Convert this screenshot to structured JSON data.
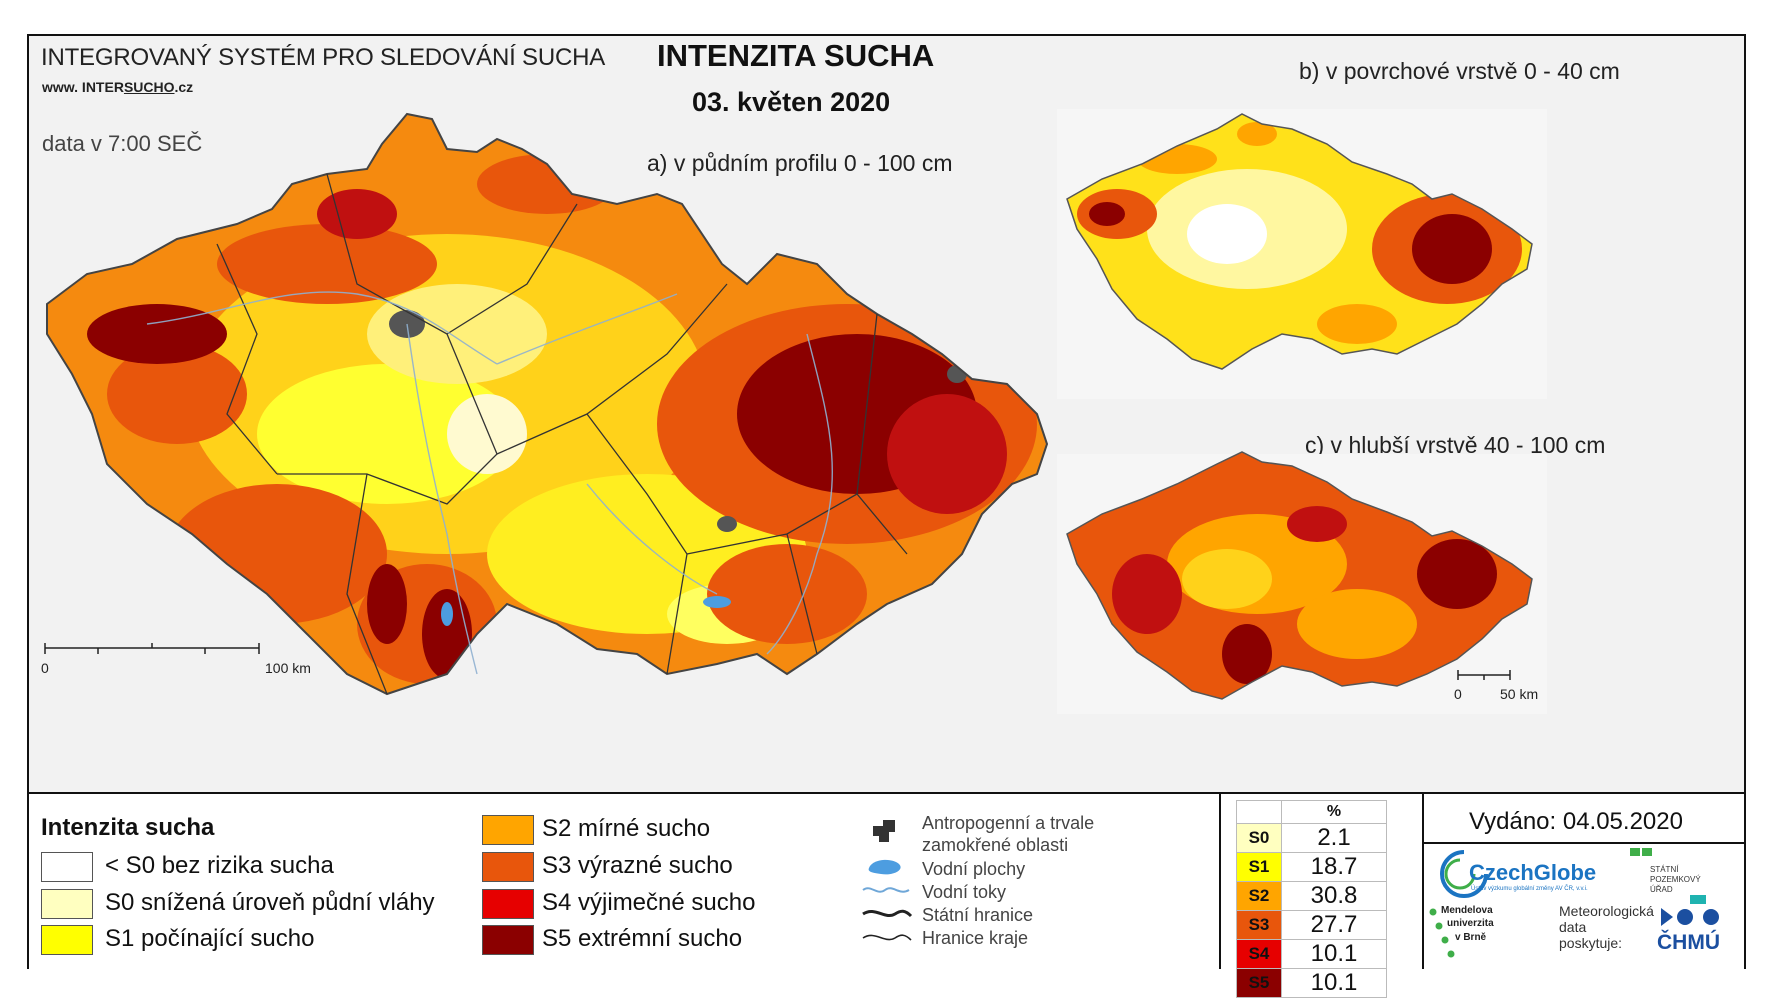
{
  "header": {
    "system_title": "INTEGROVANÝ SYSTÉM PRO SLEDOVÁNÍ SUCHA",
    "website_prefix": "www. INTER",
    "website_underlined": "SUCHO",
    "website_suffix": ".cz",
    "data_time": "data v 7:00 SEČ",
    "main_title": "INTENZITA SUCHA",
    "date": "03. květen 2020"
  },
  "maps": {
    "a_label": "a) v půdním profilu 0 - 100 cm",
    "b_label": "b) v povrchové vrstvě 0 - 40 cm",
    "c_label": "c) v hlubší vrstvě 40 - 100 cm",
    "scale_main_start": "0",
    "scale_main_end": "100 km",
    "scale_small_start": "0",
    "scale_small_end": "50 km"
  },
  "legend": {
    "title": "Intenzita sucha",
    "classes": [
      {
        "label": "< S0 bez rizika sucha",
        "color": "#ffffff"
      },
      {
        "label": "S0 snížená úroveň půdní vláhy",
        "color": "#ffffc0"
      },
      {
        "label": "S1 počínající sucho",
        "color": "#ffff00"
      },
      {
        "label": "S2 mírné sucho",
        "color": "#ffa500"
      },
      {
        "label": "S3 výrazné sucho",
        "color": "#e8560c"
      },
      {
        "label": "S4 výjimečné sucho",
        "color": "#e60000"
      },
      {
        "label": "S5 extrémní sucho",
        "color": "#8b0000"
      }
    ],
    "symbols": {
      "anthropogenic_line1": "Antropogenní a trvale",
      "anthropogenic_line2": "zamokřené oblasti",
      "water_bodies": "Vodní plochy",
      "water_streams": "Vodní toky",
      "state_border": "Státní hranice",
      "region_border": "Hranice kraje"
    }
  },
  "percent_table": {
    "header": "%",
    "rows": [
      {
        "cls": "S0",
        "value": "2.1",
        "color": "#ffffc0"
      },
      {
        "cls": "S1",
        "value": "18.7",
        "color": "#ffff00"
      },
      {
        "cls": "S2",
        "value": "30.8",
        "color": "#ffa500"
      },
      {
        "cls": "S3",
        "value": "27.7",
        "color": "#e8560c"
      },
      {
        "cls": "S4",
        "value": "10.1",
        "color": "#e60000"
      },
      {
        "cls": "S5",
        "value": "10.1",
        "color": "#8b0000"
      }
    ]
  },
  "footer": {
    "issued": "Vydáno: 04.05.2020",
    "czechglobe": "CzechGlobe",
    "czechglobe_sub": "Ústav výzkumu globální změny AV ČR, v.v.i.",
    "spu_line1": "STÁTNÍ",
    "spu_line2": "POZEMKOVÝ",
    "spu_line3": "ÚŘAD",
    "mendel_line1": "Mendelova",
    "mendel_line2": "univerzita",
    "mendel_line3": "v Brně",
    "meteo_line1": "Meteorologická",
    "meteo_line2": "data",
    "meteo_line3": "poskytuje:",
    "chmu": "ČHMÚ"
  }
}
